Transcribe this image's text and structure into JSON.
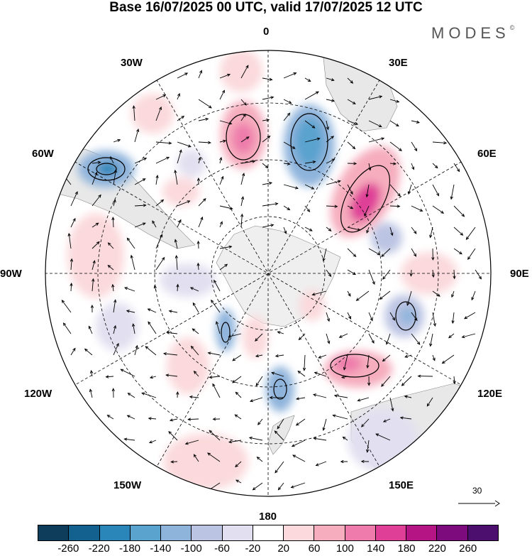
{
  "title": "Base 16/07/2025 00 UTC, valid 17/07/2025 12 UTC",
  "logo": "MODES",
  "logo_mark": "©",
  "longitude_labels": {
    "top": "0",
    "top_right": "30E",
    "right_upper": "60E",
    "right": "90E",
    "right_lower": "120E",
    "bottom_right": "150E",
    "bottom": "180",
    "bottom_left": "150W",
    "left_lower": "120W",
    "left": "90W",
    "left_upper": "60W",
    "top_left": "30W"
  },
  "reference_vector": "30",
  "colorbar": {
    "ticks": [
      "-260",
      "-220",
      "-180",
      "-140",
      "-100",
      "-60",
      "-20",
      "20",
      "60",
      "100",
      "140",
      "180",
      "220",
      "260"
    ],
    "colors": [
      "#0e3d5c",
      "#12618f",
      "#2a86b9",
      "#5aa3cf",
      "#8fb4dc",
      "#bcc4e3",
      "#e2e0f0",
      "#ffffff",
      "#fbd9dc",
      "#f6adbe",
      "#ee7bab",
      "#df3f97",
      "#b51584",
      "#7e0b7d",
      "#4c0f6e"
    ]
  },
  "colors": {
    "land": "#e6e6e6",
    "antarctica": "#efefef",
    "frame": "#000000"
  }
}
